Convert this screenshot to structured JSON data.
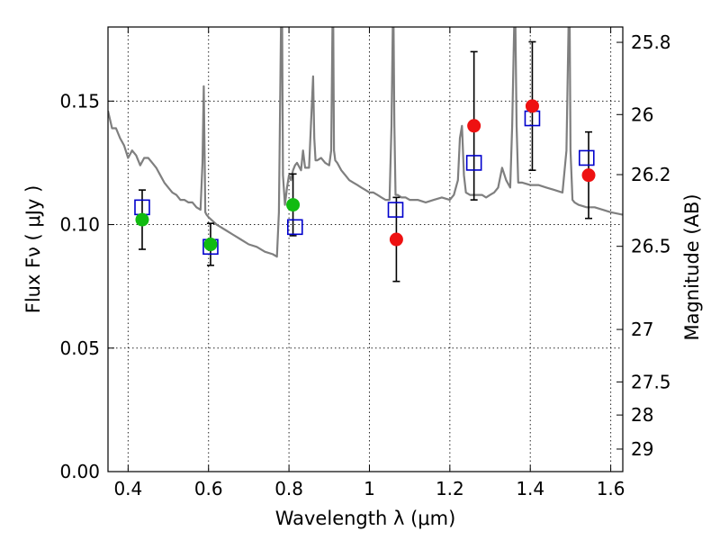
{
  "chart_data": {
    "type": "scatter",
    "xlabel": "Wavelength  λ (μm)",
    "ylabel": "Flux  Fν  ( μJy )",
    "y2label": "Magnitude (AB)",
    "xlim": [
      0.35,
      1.63
    ],
    "ylim": [
      0.0,
      0.18
    ],
    "grid": true,
    "x_ticks": [
      {
        "value": 0.4,
        "label": "0.4"
      },
      {
        "value": 0.6,
        "label": "0.6"
      },
      {
        "value": 0.8,
        "label": "0.8"
      },
      {
        "value": 1.0,
        "label": "1"
      },
      {
        "value": 1.2,
        "label": "1.2"
      },
      {
        "value": 1.4,
        "label": "1.4"
      },
      {
        "value": 1.6,
        "label": "1.6"
      }
    ],
    "y_ticks": [
      {
        "value": 0.0,
        "label": "0.00"
      },
      {
        "value": 0.05,
        "label": "0.05"
      },
      {
        "value": 0.1,
        "label": "0.10"
      },
      {
        "value": 0.15,
        "label": "0.15"
      }
    ],
    "y2_ticks": [
      {
        "value": 25.8,
        "label": "25.8"
      },
      {
        "value": 26.0,
        "label": "26"
      },
      {
        "value": 26.2,
        "label": "26.2"
      },
      {
        "value": 26.5,
        "label": "26.5"
      },
      {
        "value": 27.0,
        "label": "27"
      },
      {
        "value": 27.5,
        "label": "27.5"
      },
      {
        "value": 28.0,
        "label": "28"
      },
      {
        "value": 29.0,
        "label": "29"
      }
    ],
    "colors": {
      "spectrum": "#7f7f7f",
      "model_marker": "#0000cc",
      "observed_optical": "#11bb11",
      "observed_nir": "#ee1111",
      "errorbar": "#000000"
    },
    "spectrum": {
      "x": [
        0.35,
        0.36,
        0.37,
        0.38,
        0.39,
        0.4,
        0.41,
        0.42,
        0.43,
        0.44,
        0.45,
        0.46,
        0.47,
        0.48,
        0.49,
        0.5,
        0.51,
        0.52,
        0.53,
        0.54,
        0.55,
        0.56,
        0.57,
        0.58,
        0.585,
        0.588,
        0.59,
        0.592,
        0.595,
        0.6,
        0.62,
        0.64,
        0.66,
        0.68,
        0.7,
        0.72,
        0.74,
        0.76,
        0.77,
        0.775,
        0.78,
        0.783,
        0.785,
        0.79,
        0.795,
        0.8,
        0.805,
        0.81,
        0.815,
        0.82,
        0.83,
        0.835,
        0.84,
        0.85,
        0.855,
        0.86,
        0.863,
        0.866,
        0.87,
        0.88,
        0.89,
        0.9,
        0.905,
        0.908,
        0.91,
        0.912,
        0.915,
        0.92,
        0.93,
        0.94,
        0.95,
        0.96,
        0.97,
        0.98,
        0.99,
        1.0,
        1.01,
        1.02,
        1.03,
        1.04,
        1.05,
        1.055,
        1.058,
        1.06,
        1.062,
        1.065,
        1.07,
        1.08,
        1.09,
        1.1,
        1.12,
        1.14,
        1.16,
        1.18,
        1.2,
        1.21,
        1.22,
        1.225,
        1.23,
        1.235,
        1.24,
        1.25,
        1.26,
        1.27,
        1.28,
        1.29,
        1.3,
        1.31,
        1.32,
        1.33,
        1.34,
        1.35,
        1.355,
        1.36,
        1.363,
        1.366,
        1.37,
        1.38,
        1.4,
        1.42,
        1.44,
        1.46,
        1.48,
        1.49,
        1.495,
        1.498,
        1.5,
        1.505,
        1.51,
        1.52,
        1.54,
        1.56,
        1.58,
        1.6,
        1.63
      ],
      "y": [
        0.146,
        0.139,
        0.139,
        0.135,
        0.132,
        0.127,
        0.13,
        0.128,
        0.124,
        0.127,
        0.127,
        0.125,
        0.123,
        0.12,
        0.117,
        0.115,
        0.113,
        0.112,
        0.11,
        0.11,
        0.109,
        0.109,
        0.107,
        0.106,
        0.125,
        0.156,
        0.13,
        0.105,
        0.104,
        0.103,
        0.1,
        0.098,
        0.096,
        0.094,
        0.092,
        0.091,
        0.089,
        0.088,
        0.087,
        0.105,
        0.18,
        0.18,
        0.12,
        0.108,
        0.115,
        0.12,
        0.118,
        0.122,
        0.124,
        0.125,
        0.122,
        0.13,
        0.123,
        0.123,
        0.142,
        0.16,
        0.135,
        0.126,
        0.126,
        0.127,
        0.125,
        0.124,
        0.13,
        0.18,
        0.18,
        0.13,
        0.126,
        0.125,
        0.122,
        0.12,
        0.118,
        0.117,
        0.116,
        0.115,
        0.114,
        0.113,
        0.113,
        0.112,
        0.111,
        0.11,
        0.11,
        0.14,
        0.18,
        0.18,
        0.14,
        0.112,
        0.112,
        0.111,
        0.111,
        0.11,
        0.11,
        0.109,
        0.11,
        0.111,
        0.11,
        0.112,
        0.118,
        0.135,
        0.14,
        0.12,
        0.113,
        0.112,
        0.112,
        0.112,
        0.112,
        0.111,
        0.112,
        0.113,
        0.115,
        0.123,
        0.118,
        0.115,
        0.14,
        0.18,
        0.18,
        0.14,
        0.117,
        0.117,
        0.116,
        0.116,
        0.115,
        0.114,
        0.113,
        0.13,
        0.18,
        0.18,
        0.13,
        0.11,
        0.109,
        0.108,
        0.107,
        0.107,
        0.106,
        0.105,
        0.104
      ]
    },
    "model_points": {
      "x": [
        0.435,
        0.605,
        0.815,
        1.065,
        1.26,
        1.405,
        1.54
      ],
      "y": [
        0.107,
        0.091,
        0.099,
        0.106,
        0.125,
        0.143,
        0.127
      ]
    },
    "observed_points": [
      {
        "x": 0.435,
        "y": 0.102,
        "yerr": 0.012,
        "color": "observed_optical"
      },
      {
        "x": 0.605,
        "y": 0.092,
        "yerr": 0.0085,
        "color": "observed_optical"
      },
      {
        "x": 0.81,
        "y": 0.108,
        "yerr": 0.0125,
        "color": "observed_optical"
      },
      {
        "x": 1.067,
        "y": 0.094,
        "yerr": 0.017,
        "color": "observed_nir"
      },
      {
        "x": 1.26,
        "y": 0.14,
        "yerr": 0.03,
        "color": "observed_nir"
      },
      {
        "x": 1.405,
        "y": 0.148,
        "yerr": 0.026,
        "color": "observed_nir"
      },
      {
        "x": 1.545,
        "y": 0.12,
        "yerr": 0.0175,
        "color": "observed_nir"
      }
    ]
  }
}
